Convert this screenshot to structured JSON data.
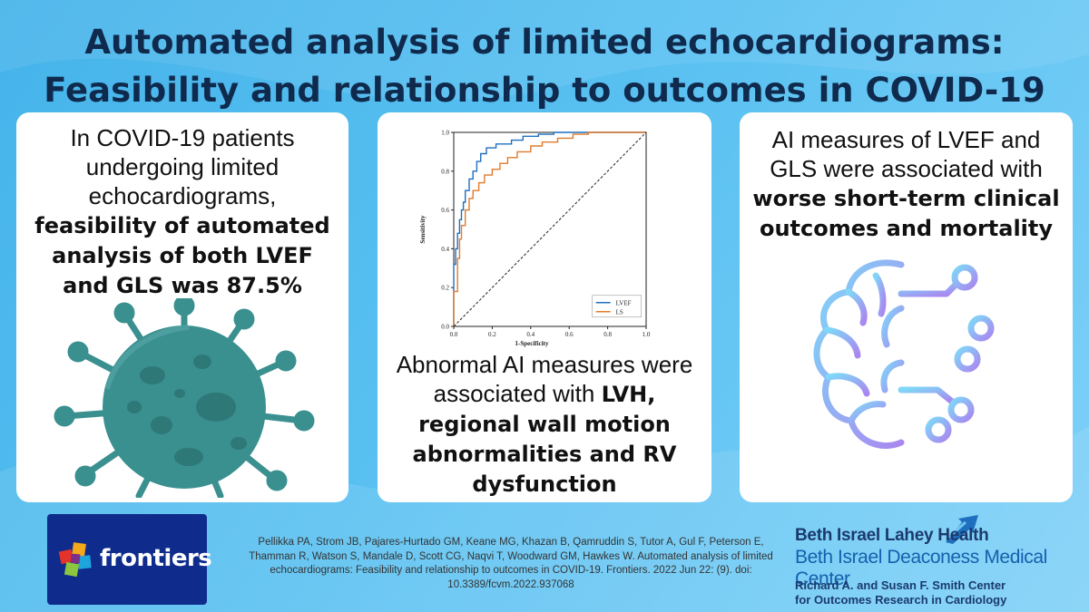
{
  "title": {
    "line1": "Automated analysis of limited echocardiograms:",
    "line2": "Feasibility and relationship to outcomes in COVID-19"
  },
  "left_panel": {
    "text_plain": "In COVID-19 patients undergoing limited echocardiograms,",
    "text_bold": "feasibility of automated analysis of both LVEF and GLS was 87.5%",
    "graphic": "virus-icon"
  },
  "middle_panel": {
    "text_plain": "Abnormal AI measures were associated with",
    "text_bold": "LVH, regional wall motion abnormalities and RV dysfunction"
  },
  "right_panel": {
    "text_plain": "AI measures of LVEF and GLS were associated with",
    "text_bold": "worse short-term clinical outcomes and mortality",
    "graphic": "brain-circuit-icon"
  },
  "chart_data": {
    "type": "line",
    "xlabel": "1-Specificity",
    "ylabel": "Sensitivity",
    "xlim": [
      0.0,
      1.0
    ],
    "ylim": [
      0.0,
      1.0
    ],
    "xticks": [
      "0.0",
      "0.2",
      "0.4",
      "0.6",
      "0.8",
      "1.0"
    ],
    "yticks": [
      "0.0",
      "0.2",
      "0.4",
      "0.6",
      "0.8",
      "1.0"
    ],
    "legend_position": "bottom-right",
    "series": [
      {
        "name": "LVEF",
        "color": "#1f6fc0",
        "x": [
          0,
          0,
          0.01,
          0.01,
          0.02,
          0.02,
          0.03,
          0.03,
          0.04,
          0.04,
          0.05,
          0.05,
          0.06,
          0.06,
          0.08,
          0.08,
          0.1,
          0.1,
          0.12,
          0.12,
          0.14,
          0.14,
          0.17,
          0.17,
          0.22,
          0.22,
          0.3,
          0.3,
          0.36,
          0.36,
          0.44,
          0.44,
          0.52,
          0.52,
          0.62,
          0.62,
          1.0
        ],
        "y": [
          0,
          0.32,
          0.32,
          0.4,
          0.4,
          0.48,
          0.48,
          0.55,
          0.55,
          0.6,
          0.6,
          0.64,
          0.64,
          0.7,
          0.7,
          0.76,
          0.76,
          0.8,
          0.8,
          0.85,
          0.85,
          0.89,
          0.89,
          0.92,
          0.92,
          0.94,
          0.94,
          0.96,
          0.96,
          0.98,
          0.98,
          0.99,
          0.99,
          1.0,
          1.0,
          1.0,
          1.0
        ]
      },
      {
        "name": "LS",
        "color": "#e07b2c",
        "x": [
          0,
          0,
          0.02,
          0.02,
          0.03,
          0.03,
          0.04,
          0.04,
          0.06,
          0.06,
          0.08,
          0.08,
          0.1,
          0.1,
          0.13,
          0.13,
          0.16,
          0.16,
          0.2,
          0.2,
          0.24,
          0.24,
          0.28,
          0.28,
          0.33,
          0.33,
          0.4,
          0.4,
          0.46,
          0.46,
          0.54,
          0.54,
          0.62,
          0.62,
          0.7,
          0.7,
          1.0
        ],
        "y": [
          0,
          0.18,
          0.18,
          0.35,
          0.35,
          0.45,
          0.45,
          0.52,
          0.52,
          0.6,
          0.6,
          0.66,
          0.66,
          0.7,
          0.7,
          0.74,
          0.74,
          0.78,
          0.78,
          0.81,
          0.81,
          0.84,
          0.84,
          0.87,
          0.87,
          0.9,
          0.9,
          0.93,
          0.93,
          0.95,
          0.95,
          0.97,
          0.97,
          0.99,
          0.99,
          1.0,
          1.0
        ]
      },
      {
        "name": "reference",
        "color": "#222222",
        "x": [
          0,
          1
        ],
        "y": [
          0,
          1
        ]
      }
    ]
  },
  "citation": "Pellikka PA, Strom JB, Pajares-Hurtado GM, Keane MG, Khazan B, Qamruddin S, Tutor A, Gul F, Peterson E, Thamman R, Watson S, Mandale D, Scott CG, Naqvi T, Woodward GM, Hawkes W. Automated analysis of limited echocardiograms: Feasibility and relationship to outcomes in COVID-19. Frontiers. 2022 Jun 22: (9). doi: 10.3389/fcvm.2022.937068",
  "publisher_logo": {
    "text": "frontiers",
    "bg": "#0f2c8c"
  },
  "institution": {
    "line1": "Beth Israel Lahey Health",
    "line2": "Beth Israel Deaconess Medical Center",
    "line3": "Richard A. and Susan F. Smith Center",
    "line4": "for Outcomes Research in Cardiology"
  },
  "colors": {
    "background": "#4eb8ee",
    "title": "#0f2a4d",
    "virus": "#3a8f8f",
    "brain_gradient_start": "#7fd8f7",
    "brain_gradient_end": "#a987f0"
  }
}
